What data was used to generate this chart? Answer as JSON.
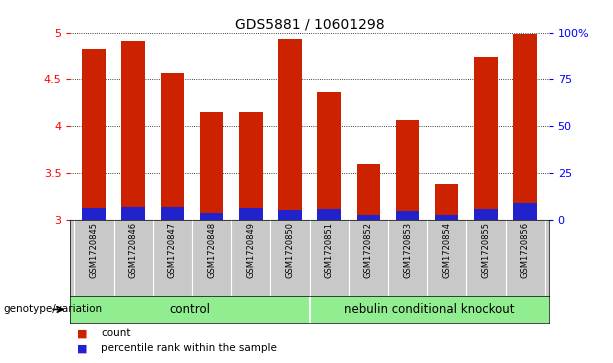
{
  "title": "GDS5881 / 10601298",
  "samples": [
    "GSM1720845",
    "GSM1720846",
    "GSM1720847",
    "GSM1720848",
    "GSM1720849",
    "GSM1720850",
    "GSM1720851",
    "GSM1720852",
    "GSM1720853",
    "GSM1720854",
    "GSM1720855",
    "GSM1720856"
  ],
  "red_values": [
    4.82,
    4.91,
    4.57,
    4.15,
    4.15,
    4.93,
    4.37,
    3.6,
    4.07,
    3.38,
    4.74,
    4.99
  ],
  "blue_values": [
    3.12,
    3.13,
    3.13,
    3.07,
    3.12,
    3.1,
    3.11,
    3.05,
    3.09,
    3.05,
    3.11,
    3.18
  ],
  "ymin": 3.0,
  "ymax": 5.0,
  "yticks": [
    3.0,
    3.5,
    4.0,
    4.5,
    5.0
  ],
  "ytick_labels": [
    "3",
    "3.5",
    "4",
    "4.5",
    "5"
  ],
  "right_yticks": [
    0.0,
    0.5,
    1.0,
    1.5,
    2.0
  ],
  "right_ytick_labels": [
    "0",
    "25",
    "50",
    "75",
    "100%"
  ],
  "bar_color_red": "#CC2200",
  "bar_color_blue": "#2222CC",
  "bar_width": 0.6,
  "grey_color": "#C8C8C8",
  "green_color": "#90EE90",
  "legend_items": [
    {
      "label": "count",
      "color": "#CC2200"
    },
    {
      "label": "percentile rank within the sample",
      "color": "#2222CC"
    }
  ],
  "group_row_label": "genotype/variation",
  "control_label": "control",
  "ko_label": "nebulin conditional knockout"
}
